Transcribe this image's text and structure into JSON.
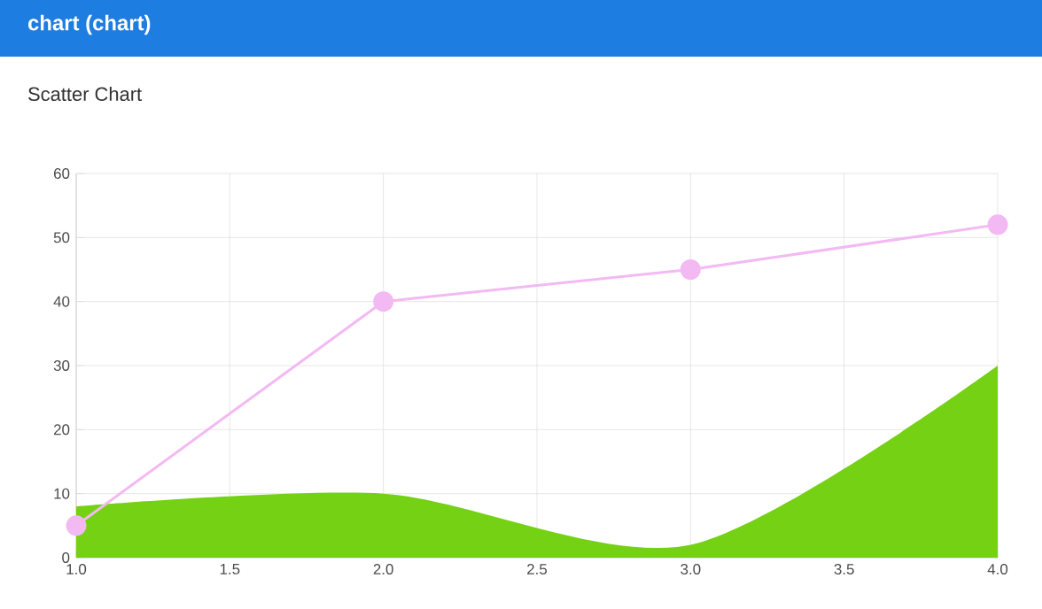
{
  "chart_data": {
    "type": "line",
    "title": "chart (chart)",
    "subtitle": "Scatter Chart",
    "x": [
      1,
      2,
      3,
      4
    ],
    "series": [
      {
        "color": "#f3b9f3",
        "values": [
          5,
          40,
          45,
          52
        ],
        "marker": "circle"
      },
      {
        "type": "area",
        "color": "#74d114",
        "values": [
          8,
          10,
          2,
          30
        ]
      }
    ],
    "xlim": [
      1,
      4
    ],
    "xticks": [
      {
        "value": 1,
        "label": "1.0"
      },
      {
        "value": 1.5,
        "label": "1.5"
      },
      {
        "value": 2,
        "label": "2.0"
      },
      {
        "value": 2.5,
        "label": "2.5"
      },
      {
        "value": 3,
        "label": "3.0"
      },
      {
        "value": 3.5,
        "label": "3.5"
      },
      {
        "value": 4,
        "label": "4.0"
      }
    ],
    "ylim": [
      0,
      60
    ],
    "yticks": [
      0,
      10,
      20,
      30,
      40,
      50,
      60
    ],
    "grid": true
  }
}
